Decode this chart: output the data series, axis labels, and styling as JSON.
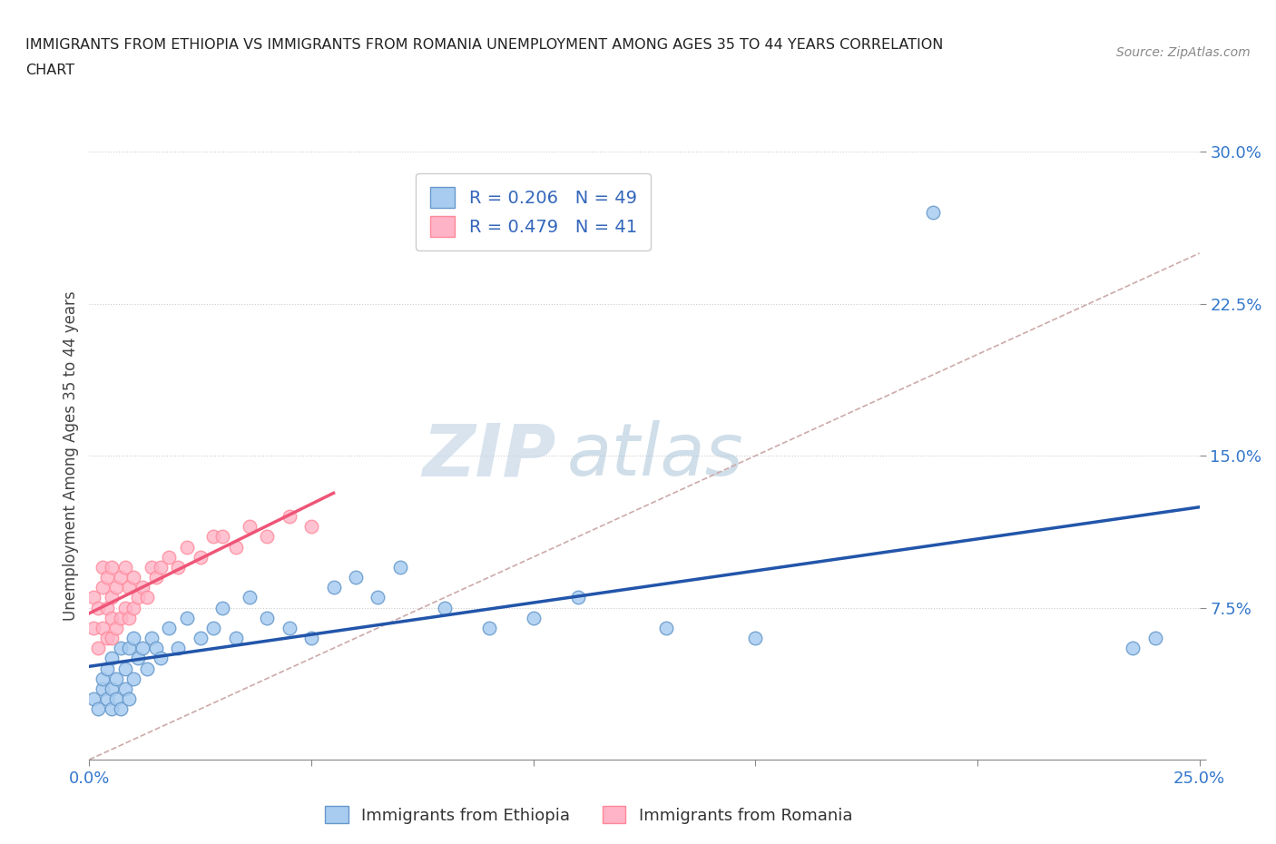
{
  "title_line1": "IMMIGRANTS FROM ETHIOPIA VS IMMIGRANTS FROM ROMANIA UNEMPLOYMENT AMONG AGES 35 TO 44 YEARS CORRELATION",
  "title_line2": "CHART",
  "source": "Source: ZipAtlas.com",
  "ylabel": "Unemployment Among Ages 35 to 44 years",
  "xlim": [
    0.0,
    0.25
  ],
  "ylim": [
    0.0,
    0.3
  ],
  "ethiopia_color": "#A8CCF0",
  "ethiopia_edge": "#6699CC",
  "romania_color": "#FFB3C6",
  "romania_edge": "#FF8899",
  "ethiopia_R": 0.206,
  "ethiopia_N": 49,
  "romania_R": 0.479,
  "romania_N": 41,
  "ethiopia_line_color": "#2255AA",
  "romania_line_color": "#EE5577",
  "diagonal_color": "#CCAAAA",
  "watermark_zip": "ZIP",
  "watermark_atlas": "atlas",
  "legend_label_1": "Immigrants from Ethiopia",
  "legend_label_2": "Immigrants from Romania",
  "ethiopia_x": [
    0.001,
    0.002,
    0.003,
    0.003,
    0.004,
    0.004,
    0.005,
    0.005,
    0.005,
    0.006,
    0.006,
    0.007,
    0.007,
    0.008,
    0.008,
    0.009,
    0.009,
    0.01,
    0.01,
    0.011,
    0.012,
    0.013,
    0.014,
    0.015,
    0.016,
    0.018,
    0.02,
    0.022,
    0.025,
    0.028,
    0.03,
    0.033,
    0.036,
    0.04,
    0.045,
    0.05,
    0.055,
    0.06,
    0.065,
    0.07,
    0.08,
    0.09,
    0.1,
    0.11,
    0.13,
    0.15,
    0.19,
    0.235,
    0.24
  ],
  "ethiopia_y": [
    0.03,
    0.025,
    0.035,
    0.04,
    0.03,
    0.045,
    0.025,
    0.035,
    0.05,
    0.03,
    0.04,
    0.025,
    0.055,
    0.035,
    0.045,
    0.03,
    0.055,
    0.04,
    0.06,
    0.05,
    0.055,
    0.045,
    0.06,
    0.055,
    0.05,
    0.065,
    0.055,
    0.07,
    0.06,
    0.065,
    0.075,
    0.06,
    0.08,
    0.07,
    0.065,
    0.06,
    0.085,
    0.09,
    0.08,
    0.095,
    0.075,
    0.065,
    0.07,
    0.08,
    0.065,
    0.06,
    0.27,
    0.055,
    0.06
  ],
  "romania_x": [
    0.001,
    0.001,
    0.002,
    0.002,
    0.003,
    0.003,
    0.003,
    0.004,
    0.004,
    0.004,
    0.005,
    0.005,
    0.005,
    0.005,
    0.006,
    0.006,
    0.007,
    0.007,
    0.008,
    0.008,
    0.009,
    0.009,
    0.01,
    0.01,
    0.011,
    0.012,
    0.013,
    0.014,
    0.015,
    0.016,
    0.018,
    0.02,
    0.022,
    0.025,
    0.028,
    0.03,
    0.033,
    0.036,
    0.04,
    0.045,
    0.05
  ],
  "romania_y": [
    0.065,
    0.08,
    0.055,
    0.075,
    0.085,
    0.065,
    0.095,
    0.06,
    0.075,
    0.09,
    0.06,
    0.07,
    0.08,
    0.095,
    0.065,
    0.085,
    0.07,
    0.09,
    0.075,
    0.095,
    0.07,
    0.085,
    0.075,
    0.09,
    0.08,
    0.085,
    0.08,
    0.095,
    0.09,
    0.095,
    0.1,
    0.095,
    0.105,
    0.1,
    0.11,
    0.11,
    0.105,
    0.115,
    0.11,
    0.12,
    0.115
  ]
}
